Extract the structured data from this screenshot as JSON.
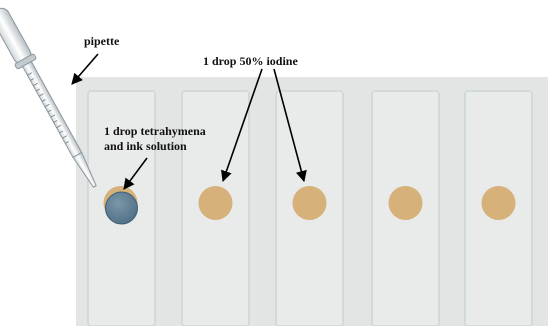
{
  "labels": {
    "pipette": "pipette",
    "iodine": "1 drop 50% iodine",
    "tetra_line1": "1 drop tetrahymena",
    "tetra_line2": "and ink solution"
  },
  "slides": [
    {
      "drop": "tetrahymena-ink"
    },
    {
      "drop": "iodine"
    },
    {
      "drop": "iodine"
    },
    {
      "drop": "iodine"
    },
    {
      "drop": "iodine"
    }
  ],
  "colors": {
    "tray": "#e3e5e4",
    "slide": "#e9eaea",
    "slide_border": "#c9d8d2",
    "iodine": "#d6b27a",
    "ink": "#5c7e94",
    "arrow": "#000000"
  }
}
